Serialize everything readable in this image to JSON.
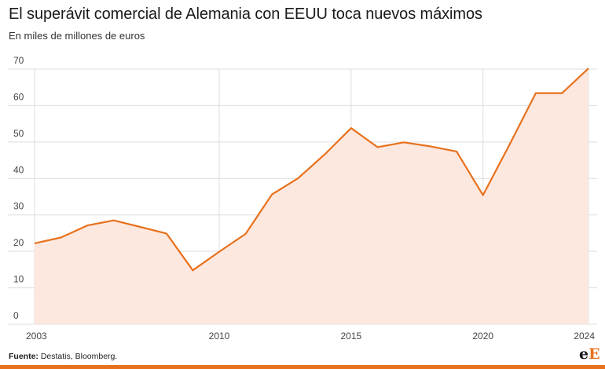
{
  "header": {
    "title": "El superávit comercial de Alemania con EEUU toca nuevos máximos",
    "subtitle": "En miles de millones de euros"
  },
  "footer": {
    "source_label": "Fuente:",
    "source_text": " Destatis, Bloomberg."
  },
  "logo": {
    "small": "e",
    "big": "E"
  },
  "colors": {
    "line": "#e8711d",
    "fill": "#fde8df",
    "grid": "#dedede",
    "bottom_bar": "#e8711d"
  },
  "chart_data": {
    "type": "area",
    "title": "El superávit comercial de Alemania con EEUU toca nuevos máximos",
    "subtitle": "En miles de millones de euros",
    "xlabel": "",
    "ylabel": "",
    "xlim": [
      2003,
      2024
    ],
    "ylim": [
      0,
      70
    ],
    "yticks": [
      0,
      10,
      20,
      30,
      40,
      50,
      60,
      70
    ],
    "xticks": [
      2003,
      2010,
      2015,
      2020,
      2024
    ],
    "grid": {
      "horizontal": true,
      "vertical": true
    },
    "x": [
      2003,
      2004,
      2005,
      2006,
      2007,
      2008,
      2009,
      2010,
      2011,
      2012,
      2013,
      2014,
      2015,
      2016,
      2017,
      2018,
      2019,
      2020,
      2021,
      2022,
      2023,
      2024
    ],
    "values": [
      22.2,
      23.8,
      27.1,
      28.5,
      26.7,
      24.9,
      14.8,
      19.9,
      24.8,
      35.6,
      40.1,
      46.6,
      53.8,
      48.6,
      49.9,
      48.8,
      47.4,
      35.4,
      49.2,
      63.4,
      63.4,
      70.2
    ]
  }
}
